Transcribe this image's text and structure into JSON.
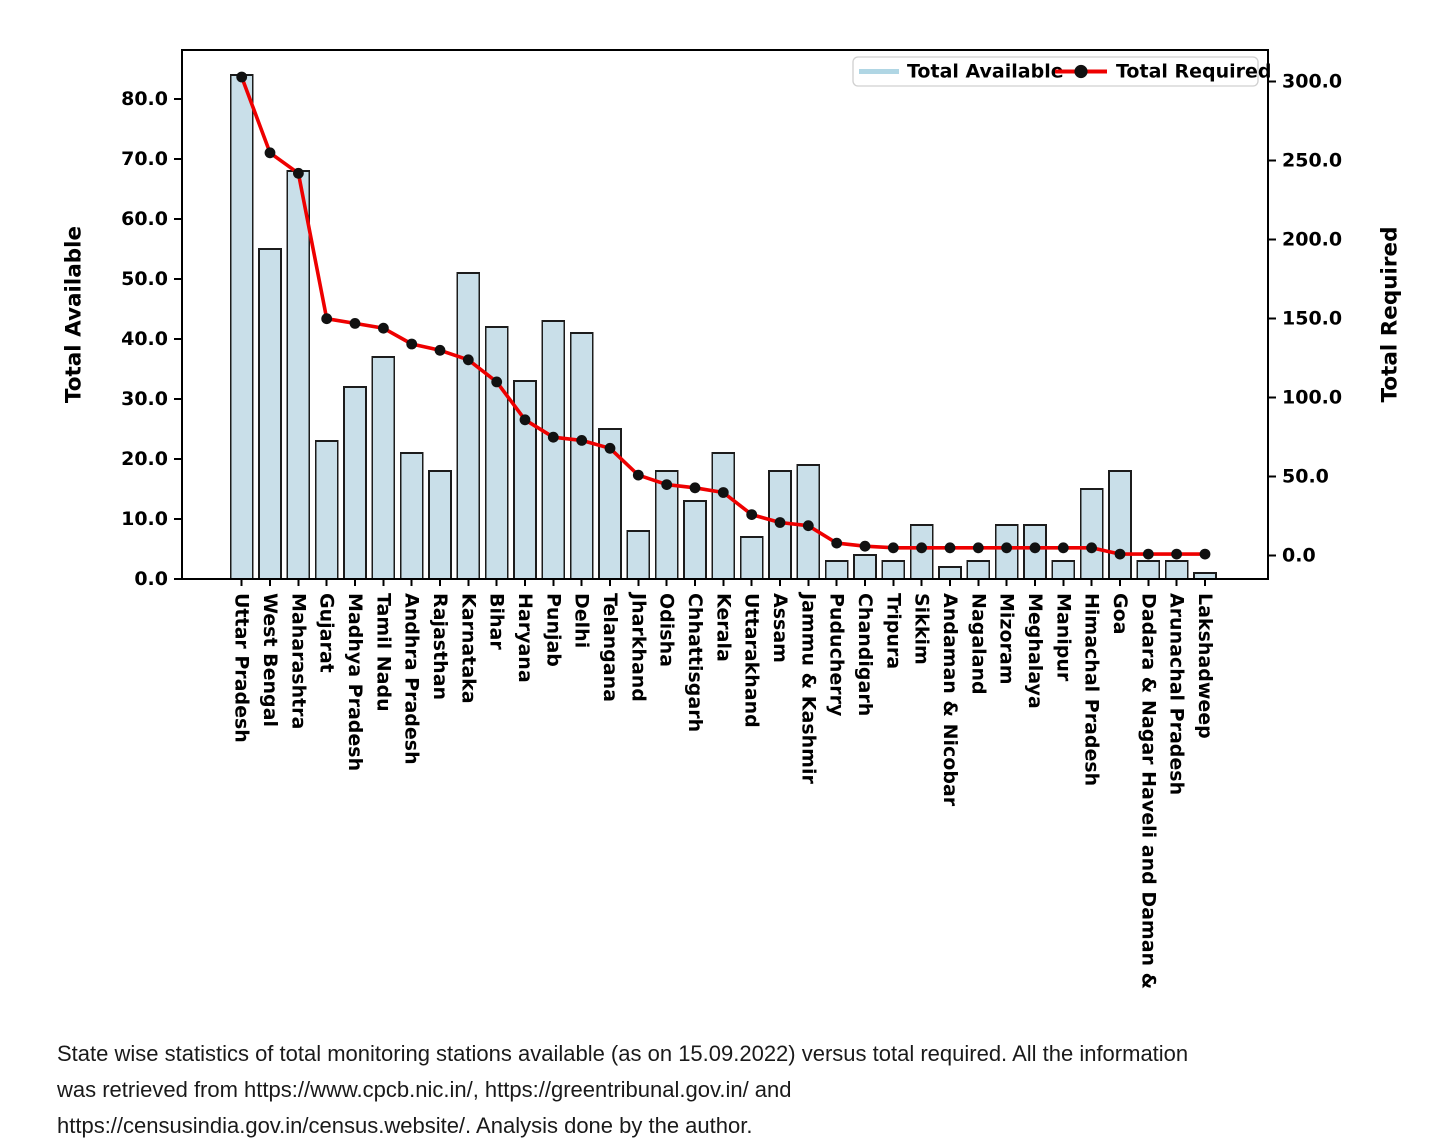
{
  "chart_data": {
    "type": "combo",
    "categories": [
      "Uttar Pradesh",
      "West Bengal",
      "Maharashtra",
      "Gujarat",
      "Madhya Pradesh",
      "Tamil Nadu",
      "Andhra Pradesh",
      "Rajasthan",
      "Karnataka",
      "Bihar",
      "Haryana",
      "Punjab",
      "Delhi",
      "Telangana",
      "Jharkhand",
      "Odisha",
      "Chhattisgarh",
      "Kerala",
      "Uttarakhand",
      "Assam",
      "Jammu & Kashmir",
      "Puducherry",
      "Chandigarh",
      "Tripura",
      "Sikkim",
      "Andaman & Nicobar",
      "Nagaland",
      "Mizoram",
      "Meghalaya",
      "Manipur",
      "Himachal Pradesh",
      "Goa",
      "Dadara & Nagar Haveli and Daman &",
      "Arunachal Pradesh",
      "Lakshadweep"
    ],
    "series": [
      {
        "name": "Total Available",
        "type": "bar",
        "axis": "left",
        "values": [
          84,
          55,
          68,
          23,
          32,
          37,
          21,
          18,
          51,
          42,
          33,
          43,
          41,
          25,
          8,
          18,
          13,
          21,
          7,
          18,
          19,
          3,
          4,
          3,
          9,
          2,
          3,
          9,
          9,
          3,
          15,
          18,
          3,
          3,
          1
        ]
      },
      {
        "name": "Total Required",
        "type": "line",
        "axis": "right",
        "values": [
          303,
          255,
          242,
          150,
          147,
          144,
          134,
          130,
          124,
          110,
          86,
          75,
          73,
          68,
          51,
          45,
          43,
          40,
          26,
          21,
          19,
          8,
          6,
          5,
          5,
          5,
          5,
          5,
          5,
          5,
          5,
          1,
          1,
          1,
          1
        ]
      }
    ],
    "left_axis": {
      "label": "Total Available",
      "ticks": [
        0,
        10,
        20,
        30,
        40,
        50,
        60,
        70,
        80
      ],
      "range": [
        0,
        88.2
      ],
      "tick_format": "one-decimal"
    },
    "right_axis": {
      "label": "Total Required",
      "ticks": [
        0,
        50,
        100,
        150,
        200,
        250,
        300
      ],
      "range": [
        -14.7,
        320
      ],
      "tick_format": "one-decimal"
    },
    "legend": {
      "position": "top-right",
      "entries": [
        "Total Available",
        "Total Required"
      ]
    },
    "grid": false,
    "colors": {
      "bar_fill": "#c9dfe9",
      "bar_edge": "#1c1c1c",
      "line": "#ee0000",
      "marker": "#111111",
      "legend_bar_swatch": "#b0d6e4",
      "axis": "#000000",
      "legend_border": "#d0d0d0"
    }
  },
  "caption": {
    "lines": [
      "State wise statistics of total monitoring stations available (as on 15.09.2022) versus total required. All the information",
      "was retrieved from https://www.cpcb.nic.in/, https://greentribunal.gov.in/ and",
      "https://censusindia.gov.in/census.website/. Analysis done by the author."
    ]
  }
}
